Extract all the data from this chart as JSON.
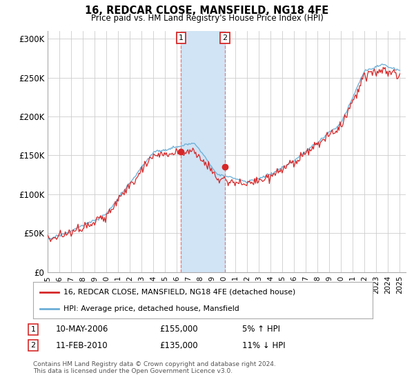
{
  "title": "16, REDCAR CLOSE, MANSFIELD, NG18 4FE",
  "subtitle": "Price paid vs. HM Land Registry's House Price Index (HPI)",
  "hpi_label": "HPI: Average price, detached house, Mansfield",
  "price_label": "16, REDCAR CLOSE, MANSFIELD, NG18 4FE (detached house)",
  "t1_date": "10-MAY-2006",
  "t2_date": "11-FEB-2010",
  "t1_price": 155000,
  "t2_price": 135000,
  "t1_hpi": "5% ↑ HPI",
  "t2_hpi": "11% ↓ HPI",
  "t1_x": 2006.37,
  "t2_x": 2010.11,
  "footer": "Contains HM Land Registry data © Crown copyright and database right 2024.\nThis data is licensed under the Open Government Licence v3.0.",
  "hpi_color": "#6baed6",
  "price_color": "#d62728",
  "dashed_color": "#e87070",
  "span_color": "#d0e4f5",
  "ylim_min": 0,
  "ylim_max": 310000,
  "xlim_min": 1995,
  "xlim_max": 2025.5,
  "yticks": [
    0,
    50000,
    100000,
    150000,
    200000,
    250000,
    300000
  ],
  "ytick_labels": [
    "£0",
    "£50K",
    "£100K",
    "£150K",
    "£200K",
    "£250K",
    "£300K"
  ],
  "xticks": [
    1995,
    1996,
    1997,
    1998,
    1999,
    2000,
    2001,
    2002,
    2003,
    2004,
    2005,
    2006,
    2007,
    2008,
    2009,
    2010,
    2011,
    2012,
    2013,
    2014,
    2015,
    2016,
    2017,
    2018,
    2019,
    2020,
    2021,
    2022,
    2023,
    2024,
    2025
  ]
}
